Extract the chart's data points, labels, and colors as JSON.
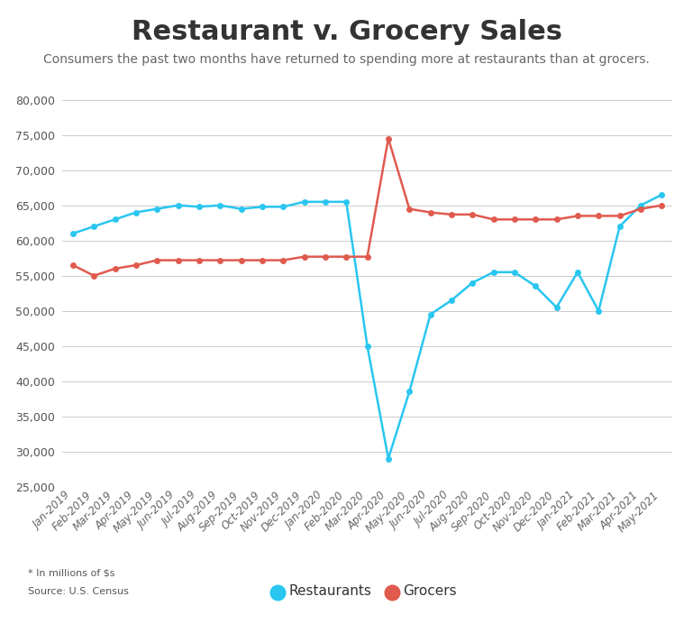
{
  "title": "Restaurant v. Grocery Sales",
  "subtitle": "Consumers the past two months have returned to spending more at restaurants than at grocers.",
  "footnote": "* In millions of $s",
  "source": "Source: U.S. Census",
  "ylim": [
    25000,
    80000
  ],
  "yticks": [
    25000,
    30000,
    35000,
    40000,
    45000,
    50000,
    55000,
    60000,
    65000,
    70000,
    75000,
    80000
  ],
  "restaurant_color": "#29C6F0",
  "grocer_color": "#E05A4E",
  "line_width": 1.8,
  "marker_size": 5,
  "labels": [
    "Jan-2019",
    "Feb-2019",
    "Mar-2019",
    "Apr-2019",
    "May-2019",
    "Jun-2019",
    "Jul-2019",
    "Aug-2019",
    "Sep-2019",
    "Oct-2019",
    "Nov-2019",
    "Dec-2019",
    "Jan-2020",
    "Feb-2020",
    "Mar-2020",
    "Apr-2020",
    "May-2020",
    "Jun-2020",
    "Jul-2020",
    "Aug-2020",
    "Sep-2020",
    "Oct-2020",
    "Nov-2020",
    "Dec-2020",
    "Jan-2021",
    "Feb-2021",
    "Mar-2021",
    "Apr-2021",
    "May-2021"
  ],
  "restaurants": [
    61000,
    62000,
    63000,
    64000,
    64500,
    65000,
    64800,
    65000,
    64500,
    64800,
    64800,
    65500,
    65500,
    65500,
    45000,
    29000,
    38500,
    49500,
    51500,
    54000,
    55500,
    55500,
    53500,
    50500,
    55500,
    50000,
    62000,
    65000,
    66500
  ],
  "grocers": [
    56500,
    55000,
    56000,
    56500,
    57200,
    57200,
    57200,
    57200,
    57200,
    57200,
    57200,
    57700,
    57700,
    57700,
    57700,
    74500,
    64500,
    64000,
    63700,
    63700,
    63000,
    63000,
    63000,
    63000,
    63500,
    63500,
    63500,
    64500,
    65000
  ],
  "background_color": "#FFFFFF",
  "grid_color": "#CCCCCC",
  "title_fontsize": 22,
  "subtitle_fontsize": 10,
  "tick_fontsize": 9,
  "legend_fontsize": 11,
  "ytick_color": "#555555",
  "xtick_color": "#666666"
}
